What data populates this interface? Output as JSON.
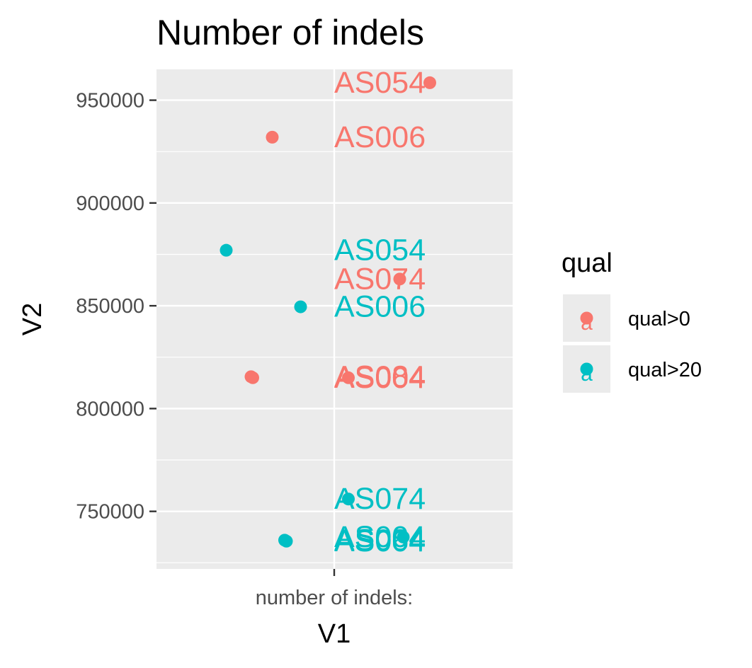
{
  "chart_data": {
    "type": "scatter",
    "title": "Number of indels",
    "xlabel": "V1",
    "ylabel": "V2",
    "x_ticks": [
      "number of indels:"
    ],
    "ylim": [
      722000,
      965000
    ],
    "y_ticks": [
      750000,
      800000,
      850000,
      900000,
      950000
    ],
    "y_tick_labels": [
      "750000",
      "800000",
      "850000",
      "900000",
      "950000"
    ],
    "grid": true,
    "legend": {
      "title": "qual",
      "position": "right",
      "entries": [
        "qual>0",
        "qual>20"
      ]
    },
    "series": [
      {
        "name": "qual>0",
        "color": "#F8766D",
        "points": [
          {
            "jitter": 0.54,
            "y": 958500,
            "label": "AS054"
          },
          {
            "jitter": -0.35,
            "y": 932000,
            "label": "AS006"
          },
          {
            "jitter": 0.37,
            "y": 863000,
            "label": "AS074"
          },
          {
            "jitter": -0.47,
            "y": 815500,
            "label": "AS084"
          },
          {
            "jitter": -0.46,
            "y": 815000,
            "label": "AS004"
          },
          {
            "jitter": 0.08,
            "y": 815000,
            "label": "AS004"
          }
        ]
      },
      {
        "name": "qual>20",
        "color": "#00BFC4",
        "points": [
          {
            "jitter": -0.61,
            "y": 877000,
            "label": "AS054"
          },
          {
            "jitter": -0.19,
            "y": 849500,
            "label": "AS006"
          },
          {
            "jitter": 0.08,
            "y": 756000,
            "label": "AS074"
          },
          {
            "jitter": -0.28,
            "y": 736000,
            "label": "AS084"
          },
          {
            "jitter": -0.27,
            "y": 735500,
            "label": "AS004"
          },
          {
            "jitter": 0.39,
            "y": 737500,
            "label": "AS004"
          }
        ]
      }
    ]
  }
}
